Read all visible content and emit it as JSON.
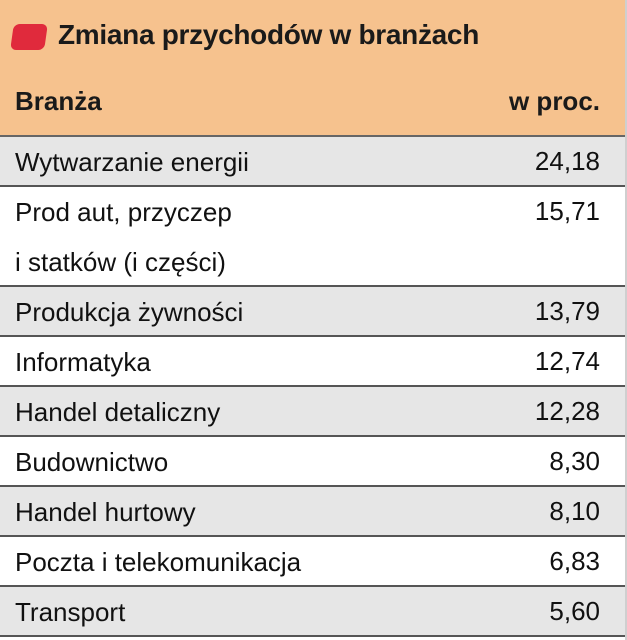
{
  "header": {
    "title": "Zmiana przychodów w branżach",
    "columns": [
      "Branża",
      "w proc."
    ]
  },
  "table": {
    "rows": [
      [
        "Wytwarzanie energii",
        "24,18"
      ],
      [
        "Prod aut, przyczep\ni statków (i części)",
        "15,71"
      ],
      [
        "Produkcja żywności",
        "13,79"
      ],
      [
        "Informatyka",
        "12,74"
      ],
      [
        "Handel detaliczny",
        "12,28"
      ],
      [
        "Budownictwo",
        "8,30"
      ],
      [
        "Handel hurtowy",
        "8,10"
      ],
      [
        "Poczta i telekomunikacja",
        "6,83"
      ],
      [
        "Transport",
        "5,60"
      ]
    ]
  }
}
